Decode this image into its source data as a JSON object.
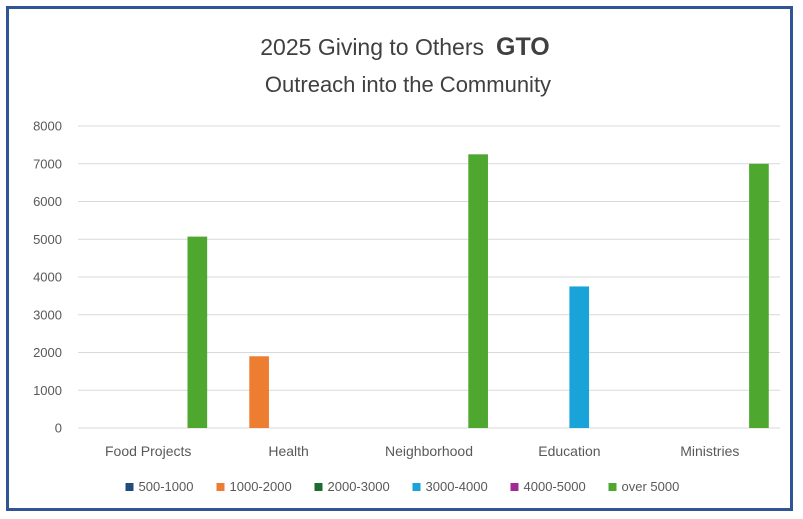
{
  "chart_data": {
    "type": "bar",
    "title": "2025 Giving to Others",
    "title_emphasis": "GTO",
    "subtitle": "Outreach into the Community",
    "xlabel": "",
    "ylabel": "",
    "ylim": [
      0,
      8000
    ],
    "yticks": [
      0,
      1000,
      2000,
      3000,
      4000,
      5000,
      6000,
      7000,
      8000
    ],
    "grid": true,
    "legend_position": "bottom",
    "categories": [
      "Food Projects",
      "Health",
      "Neighborhood",
      "Education",
      "Ministries"
    ],
    "series": [
      {
        "name": "500-1000",
        "color": "#1f4e79",
        "values": [
          null,
          null,
          null,
          null,
          null
        ]
      },
      {
        "name": "1000-2000",
        "color": "#ed7d31",
        "values": [
          null,
          1900,
          null,
          null,
          null
        ]
      },
      {
        "name": "2000-3000",
        "color": "#1e6b2e",
        "values": [
          null,
          null,
          null,
          null,
          null
        ]
      },
      {
        "name": "3000-4000",
        "color": "#1aa3d9",
        "values": [
          null,
          null,
          null,
          3750,
          null
        ]
      },
      {
        "name": "4000-5000",
        "color": "#a02b93",
        "values": [
          null,
          null,
          null,
          null,
          null
        ]
      },
      {
        "name": "over 5000",
        "color": "#4ea72e",
        "values": [
          5070,
          null,
          7250,
          null,
          7000
        ]
      }
    ]
  }
}
